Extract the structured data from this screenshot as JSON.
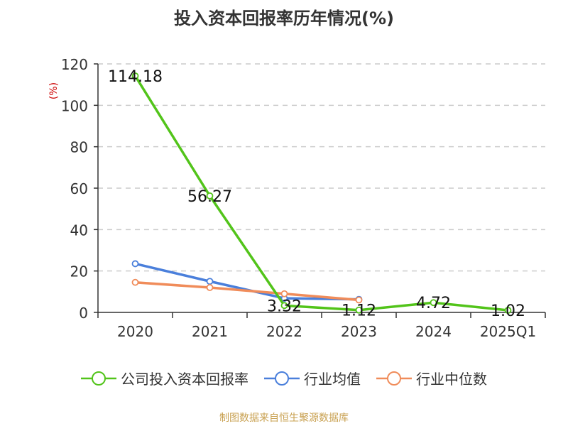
{
  "chart_data": {
    "type": "line",
    "title": "投入资本回报率历年情况(%)",
    "ylabel": "(%)",
    "xlabel": "",
    "categories": [
      "2020",
      "2021",
      "2022",
      "2023",
      "2024",
      "2025Q1"
    ],
    "ylim": [
      0,
      120
    ],
    "yticks": [
      0,
      20,
      40,
      60,
      80,
      100,
      120
    ],
    "grid": true,
    "legend_position": "bottom",
    "series": [
      {
        "name": "公司投入资本回报率",
        "color": "#52c41a",
        "values": [
          114.18,
          56.27,
          3.32,
          1.12,
          4.72,
          1.02
        ],
        "labels": [
          "114.18",
          "56.27",
          "3.32",
          "1.12",
          "4.72",
          "1.02"
        ]
      },
      {
        "name": "行业均值",
        "color": "#4a7fdb",
        "values": [
          23.5,
          15.0,
          6.8,
          6.3,
          null,
          null
        ]
      },
      {
        "name": "行业中位数",
        "color": "#f08c5a",
        "values": [
          14.5,
          12.0,
          9.0,
          6.0,
          null,
          null
        ]
      }
    ]
  },
  "source": "制图数据来自恒生聚源数据库"
}
